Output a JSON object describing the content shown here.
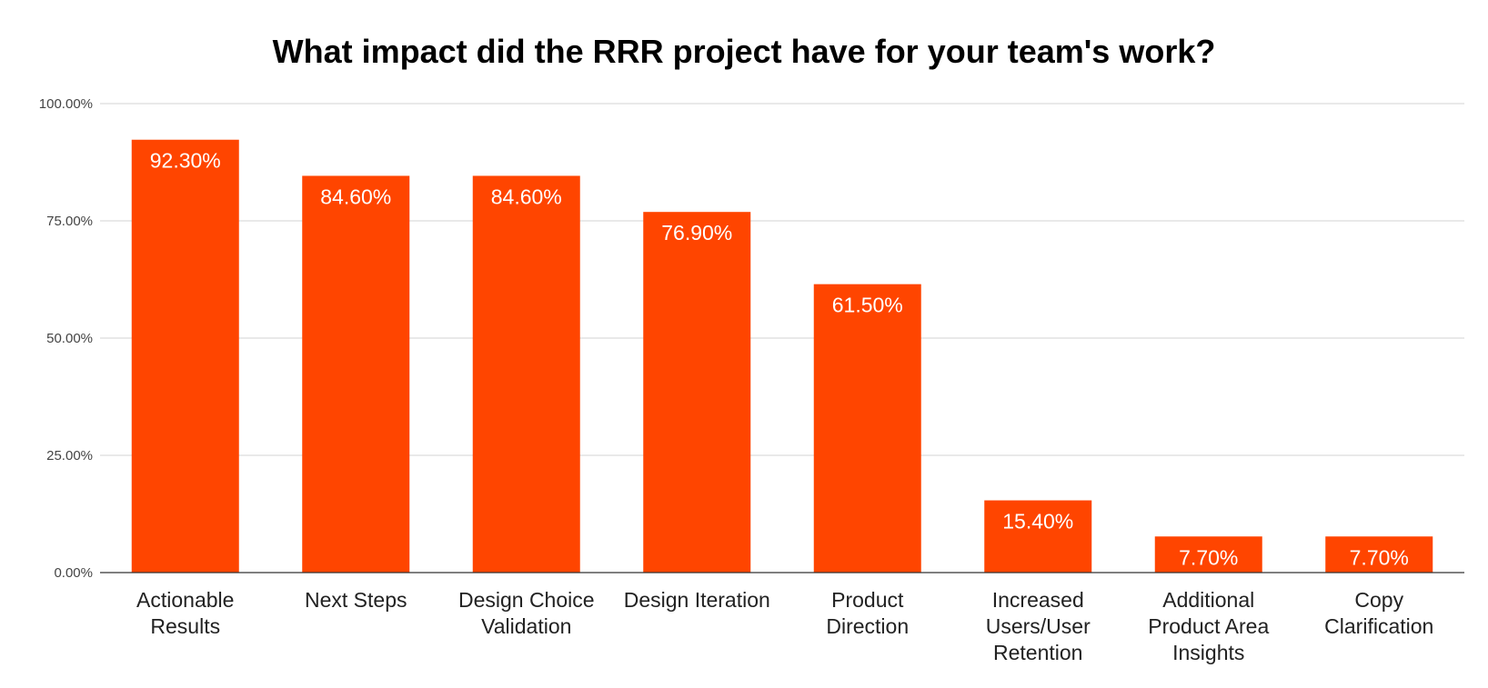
{
  "chart_data": {
    "type": "bar",
    "title": "What impact did the RRR project have for your team's work?",
    "xlabel": "",
    "ylabel": "",
    "ylim": [
      0,
      100
    ],
    "yticks": [
      0,
      25,
      50,
      75,
      100
    ],
    "ytick_labels": [
      "0.00%",
      "25.00%",
      "50.00%",
      "75.00%",
      "100.00%"
    ],
    "grid": true,
    "legend": "none",
    "bar_color": "#ff4500",
    "categories": [
      [
        "Actionable",
        "Results"
      ],
      [
        "Next Steps"
      ],
      [
        "Design Choice",
        "Validation"
      ],
      [
        "Design Iteration"
      ],
      [
        "Product",
        "Direction"
      ],
      [
        "Increased",
        "Users/User",
        "Retention"
      ],
      [
        "Additional",
        "Product Area",
        "Insights"
      ],
      [
        "Copy",
        "Clarification"
      ]
    ],
    "values": [
      92.3,
      84.6,
      84.6,
      76.9,
      61.5,
      15.4,
      7.7,
      7.7
    ],
    "value_labels": [
      "92.30%",
      "84.60%",
      "84.60%",
      "76.90%",
      "61.50%",
      "15.40%",
      "7.70%",
      "7.70%"
    ]
  }
}
